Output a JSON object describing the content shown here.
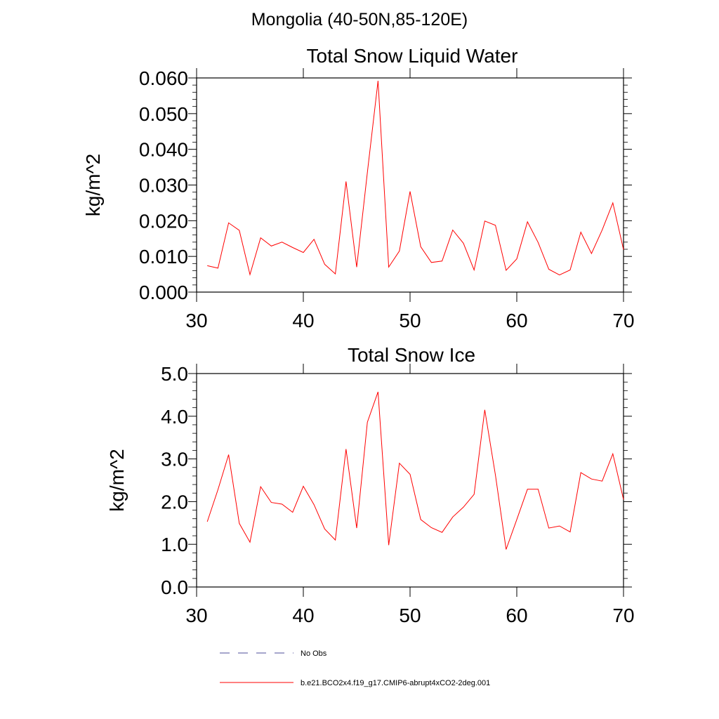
{
  "page": {
    "title": "Mongolia (40-50N,85-120E)"
  },
  "legend": {
    "items": [
      {
        "label": "No Obs",
        "color": "#4d4d99",
        "style": "dashed"
      },
      {
        "label": "b.e21.BCO2x4.f19_g17.CMIP6-abrupt4xCO2-2deg.001",
        "color": "#ff0000",
        "style": "solid"
      }
    ]
  },
  "chart_data": [
    {
      "type": "line",
      "title": "Total Snow Liquid Water",
      "xlabel": "",
      "ylabel": "kg/m^2",
      "xlim": [
        30,
        70
      ],
      "ylim": [
        0.0,
        0.06
      ],
      "xticks": [
        30,
        40,
        50,
        60,
        70
      ],
      "yticks": [
        0.0,
        0.01,
        0.02,
        0.03,
        0.04,
        0.05,
        0.06
      ],
      "yticklabels": [
        "0.000",
        "0.010",
        "0.020",
        "0.030",
        "0.040",
        "0.050",
        "0.060"
      ],
      "xticklabels": [
        "30",
        "40",
        "50",
        "60",
        "70"
      ],
      "series": [
        {
          "name": "b.e21.BCO2x4.f19_g17.CMIP6-abrupt4xCO2-2deg.001",
          "color": "#ff0000",
          "x": [
            31,
            32,
            33,
            34,
            35,
            36,
            37,
            38,
            39,
            40,
            41,
            42,
            43,
            44,
            45,
            46,
            47,
            48,
            49,
            50,
            51,
            52,
            53,
            54,
            55,
            56,
            57,
            58,
            59,
            60,
            61,
            62,
            63,
            64,
            65,
            66,
            67,
            68,
            69,
            70
          ],
          "values": [
            0.0074,
            0.0067,
            0.0194,
            0.0173,
            0.0049,
            0.0152,
            0.0129,
            0.014,
            0.0125,
            0.0111,
            0.0148,
            0.0078,
            0.0051,
            0.031,
            0.007,
            0.0335,
            0.0592,
            0.007,
            0.0115,
            0.0282,
            0.0127,
            0.0083,
            0.0087,
            0.0174,
            0.0137,
            0.0062,
            0.0199,
            0.0187,
            0.0061,
            0.0093,
            0.0197,
            0.0139,
            0.0064,
            0.0048,
            0.0062,
            0.0168,
            0.0108,
            0.0174,
            0.025,
            0.0119
          ]
        }
      ]
    },
    {
      "type": "line",
      "title": "Total Snow Ice",
      "xlabel": "",
      "ylabel": "kg/m^2",
      "xlim": [
        30,
        70
      ],
      "ylim": [
        0.0,
        5.0
      ],
      "xticks": [
        30,
        40,
        50,
        60,
        70
      ],
      "yticks": [
        0.0,
        1.0,
        2.0,
        3.0,
        4.0,
        5.0
      ],
      "yticklabels": [
        "0.0",
        "1.0",
        "2.0",
        "3.0",
        "4.0",
        "5.0"
      ],
      "xticklabels": [
        "30",
        "40",
        "50",
        "60",
        "70"
      ],
      "series": [
        {
          "name": "b.e21.BCO2x4.f19_g17.CMIP6-abrupt4xCO2-2deg.001",
          "color": "#ff0000",
          "x": [
            31,
            32,
            33,
            34,
            35,
            36,
            37,
            38,
            39,
            40,
            41,
            42,
            43,
            44,
            45,
            46,
            47,
            48,
            49,
            50,
            51,
            52,
            53,
            54,
            55,
            56,
            57,
            58,
            59,
            60,
            61,
            62,
            63,
            64,
            65,
            66,
            67,
            68,
            69,
            70
          ],
          "values": [
            1.53,
            2.28,
            3.1,
            1.49,
            1.05,
            2.35,
            1.98,
            1.94,
            1.75,
            2.36,
            1.93,
            1.36,
            1.1,
            3.23,
            1.38,
            3.86,
            4.57,
            0.98,
            2.9,
            2.64,
            1.58,
            1.39,
            1.28,
            1.64,
            1.87,
            2.17,
            4.15,
            2.62,
            0.88,
            1.58,
            2.29,
            2.29,
            1.38,
            1.43,
            1.29,
            2.68,
            2.53,
            2.48,
            3.12,
            2.05
          ]
        }
      ]
    }
  ]
}
